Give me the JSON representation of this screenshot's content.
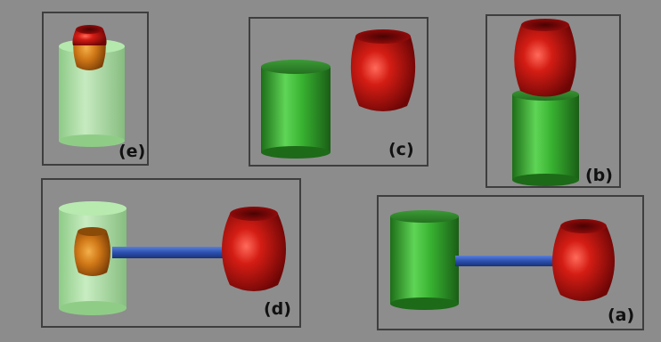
{
  "panels": {
    "e": {
      "label": "(e)"
    },
    "c": {
      "label": "(c)"
    },
    "b": {
      "label": "(b)"
    },
    "d": {
      "label": "(d)"
    },
    "a": {
      "label": "(a)"
    }
  },
  "colors": {
    "background": "#8c8c8c",
    "frame": "#3e3e3e",
    "cylinder_green": "#2f9f2a",
    "cylinder_green_transparent": "#a7e3a0",
    "barrel_red": "#c01010",
    "barrel_orange": "#d9801e",
    "connector_blue": "#2e57b5"
  }
}
